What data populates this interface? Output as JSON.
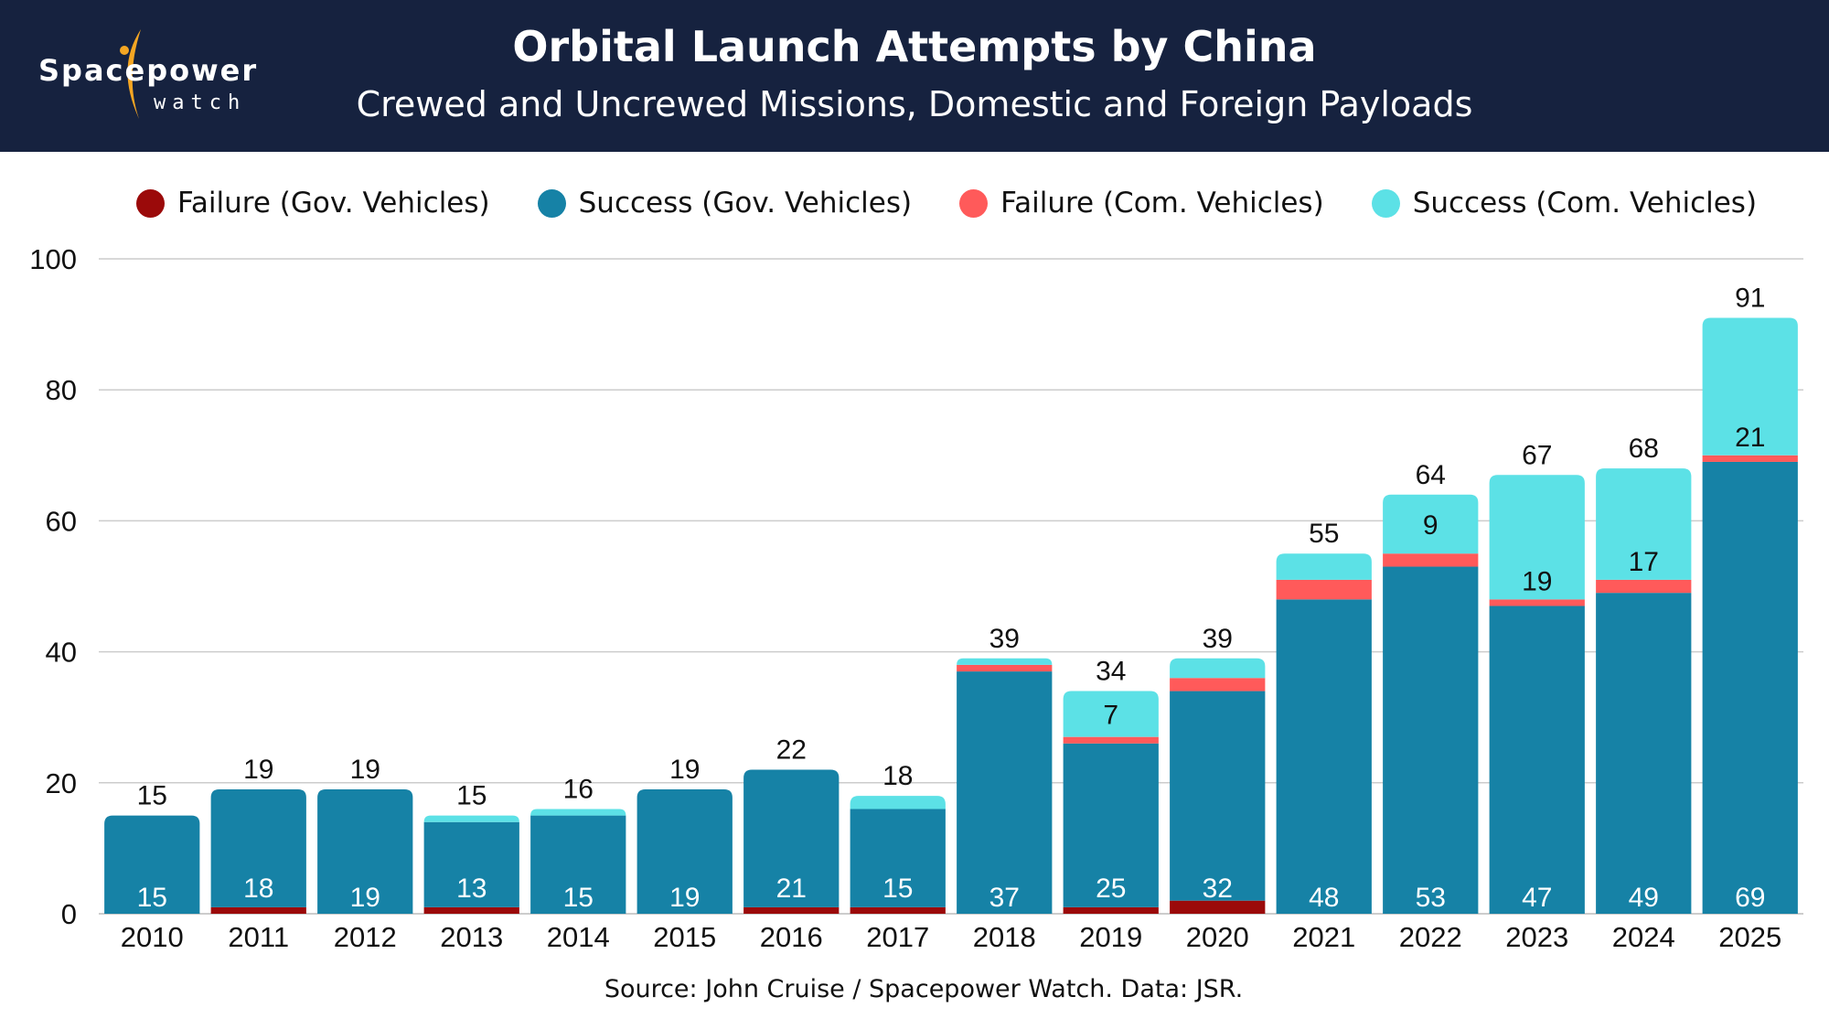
{
  "header": {
    "logo_main": "Spacepower",
    "logo_sub": "watch",
    "title": "Orbital Launch Attempts by China",
    "subtitle": "Crewed and Uncrewed Missions, Domestic and Foreign Payloads"
  },
  "footer": {
    "source": "Source: John Cruise / Spacepower Watch. Data: JSR."
  },
  "colors": {
    "header_bg": "#16223f",
    "logo_accent": "#f5a623",
    "failure_gov": "#9b0a0a",
    "success_gov": "#1682a6",
    "failure_com": "#ff5a5a",
    "success_com": "#5ce1e6",
    "gridline": "#cccccc"
  },
  "chart_data": {
    "type": "bar",
    "stacked": true,
    "title": "Orbital Launch Attempts by China",
    "subtitle": "Crewed and Uncrewed Missions, Domestic and Foreign Payloads",
    "xlabel": "",
    "ylabel": "",
    "ylim": [
      0,
      100
    ],
    "yticks": [
      0,
      20,
      40,
      60,
      80,
      100
    ],
    "grid": true,
    "legend_position": "top",
    "categories": [
      "2010",
      "2011",
      "2012",
      "2013",
      "2014",
      "2015",
      "2016",
      "2017",
      "2018",
      "2019",
      "2020",
      "2021",
      "2022",
      "2023",
      "2024",
      "2025"
    ],
    "series": [
      {
        "name": "Failure (Gov. Vehicles)",
        "color": "#9b0a0a",
        "values": [
          0,
          1,
          0,
          1,
          0,
          0,
          1,
          1,
          0,
          1,
          2,
          0,
          0,
          0,
          0,
          0
        ]
      },
      {
        "name": "Success (Gov. Vehicles)",
        "color": "#1682a6",
        "values": [
          15,
          18,
          19,
          13,
          15,
          19,
          21,
          15,
          37,
          25,
          32,
          48,
          53,
          47,
          49,
          69
        ]
      },
      {
        "name": "Failure (Com. Vehicles)",
        "color": "#ff5a5a",
        "values": [
          0,
          0,
          0,
          0,
          0,
          0,
          0,
          0,
          1,
          1,
          2,
          3,
          2,
          1,
          2,
          1
        ]
      },
      {
        "name": "Success (Com. Vehicles)",
        "color": "#5ce1e6",
        "values": [
          0,
          0,
          0,
          1,
          1,
          0,
          0,
          2,
          1,
          7,
          3,
          4,
          9,
          19,
          17,
          21
        ]
      }
    ],
    "totals": [
      15,
      19,
      19,
      15,
      16,
      19,
      22,
      18,
      39,
      34,
      39,
      55,
      64,
      67,
      68,
      91
    ],
    "data_labels": {
      "gov_success": [
        15,
        18,
        19,
        13,
        15,
        19,
        21,
        15,
        37,
        25,
        32,
        48,
        53,
        47,
        49,
        69
      ],
      "com_success_labeled": {
        "2019": 7,
        "2022": 9,
        "2023": 19,
        "2024": 17,
        "2025": 21
      }
    }
  }
}
